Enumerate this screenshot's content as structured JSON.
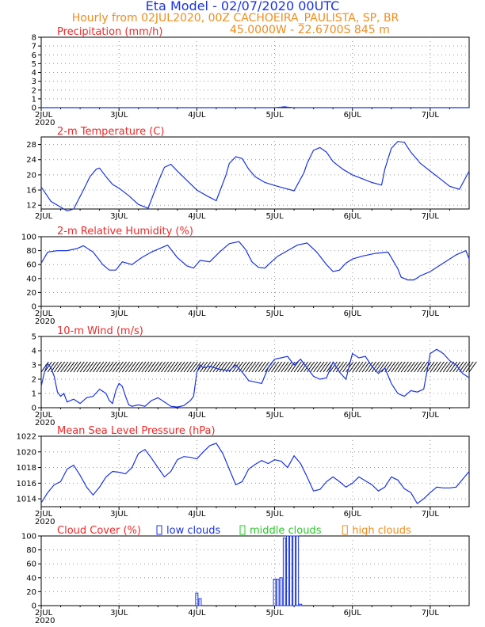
{
  "header": {
    "title": "Eta Model - 02/07/2020 00UTC",
    "line2": "Hourly from 02JUL2020, 00Z  CACHOEIRA_PAULISTA, SP, BR",
    "line3": "45.0000W - 22.6700S    845  m"
  },
  "colors": {
    "title": "#1a33e6",
    "subtitle": "#f08c1c",
    "panel_title": "#f02828",
    "series": "#1a33e6",
    "wind": "#000000",
    "low": "#1a33e6",
    "middle": "#28c828",
    "high": "#f08c1c"
  },
  "xaxis": {
    "range": [
      0,
      132
    ],
    "ticks": [
      {
        "label": "2JUL",
        "x": 0
      },
      {
        "label": "3JUL",
        "x": 24
      },
      {
        "label": "4JUL",
        "x": 48
      },
      {
        "label": "5JUL",
        "x": 72
      },
      {
        "label": "6JUL",
        "x": 96
      },
      {
        "label": "7JUL",
        "x": 120
      }
    ],
    "year_label": "2020"
  },
  "chart_data": [
    {
      "id": "precip",
      "type": "line",
      "title": "Precipitation (mm/h)",
      "ylim": [
        0,
        8
      ],
      "yticks": [
        0,
        1,
        2,
        3,
        4,
        5,
        6,
        7,
        8
      ],
      "show_year": true,
      "series": [
        {
          "name": "precipitation",
          "x": [
            0,
            72,
            74,
            75,
            76,
            78,
            132
          ],
          "y": [
            0,
            0,
            0.05,
            0.1,
            0.05,
            0,
            0
          ]
        }
      ]
    },
    {
      "id": "temp",
      "type": "line",
      "title": "2-m Temperature (C)",
      "ylim": [
        11,
        30
      ],
      "yticks": [
        12,
        16,
        20,
        24,
        28
      ],
      "show_year": false,
      "series": [
        {
          "name": "temperature",
          "x": [
            0,
            3,
            6,
            8,
            10,
            13,
            15,
            17,
            18,
            20,
            22,
            24,
            27,
            30,
            33,
            34,
            36,
            38,
            40,
            42,
            45,
            48,
            51,
            54,
            57,
            58,
            60,
            62,
            64,
            66,
            69,
            72,
            75,
            78,
            81,
            82,
            84,
            86,
            88,
            90,
            93,
            96,
            99,
            102,
            105,
            106,
            108,
            110,
            112,
            114,
            117,
            120,
            123,
            126,
            129,
            132
          ],
          "y": [
            16.8,
            13,
            11.5,
            10.5,
            11,
            16,
            19.5,
            21.5,
            21.8,
            19.5,
            17.5,
            16.5,
            14.5,
            12.2,
            11.2,
            13.5,
            18,
            22,
            22.8,
            21,
            18.5,
            16,
            14.5,
            13.2,
            20,
            23,
            24.8,
            24.3,
            21.5,
            19.5,
            18,
            17.2,
            16.5,
            15.8,
            20.5,
            23,
            26.5,
            27.2,
            26,
            23.5,
            21.5,
            20,
            19,
            18,
            17.3,
            21.5,
            27,
            28.8,
            28.6,
            26,
            23,
            21,
            19,
            17,
            16.2,
            21
          ]
        }
      ]
    },
    {
      "id": "rh",
      "type": "line",
      "title": "2-m Relative Humidity (%)",
      "ylim": [
        0,
        100
      ],
      "yticks": [
        0,
        20,
        40,
        60,
        80,
        100
      ],
      "show_year": true,
      "series": [
        {
          "name": "humidity",
          "x": [
            0,
            2,
            5,
            8,
            11,
            13,
            16,
            19,
            21,
            23,
            25,
            28,
            31,
            34,
            37,
            39,
            42,
            45,
            47,
            49,
            52,
            55,
            58,
            61,
            63,
            65,
            67,
            69,
            71,
            73,
            76,
            79,
            82,
            85,
            88,
            90,
            92,
            94,
            96,
            99,
            103,
            107,
            110,
            111,
            113,
            115,
            117,
            120,
            124,
            128,
            131,
            132
          ],
          "y": [
            62,
            78,
            80,
            80,
            83,
            87,
            78,
            60,
            52,
            52,
            64,
            60,
            70,
            78,
            84,
            88,
            70,
            58,
            55,
            66,
            64,
            78,
            90,
            93,
            82,
            64,
            56,
            55,
            64,
            72,
            80,
            88,
            91,
            78,
            60,
            50,
            52,
            62,
            68,
            72,
            76,
            78,
            54,
            42,
            38,
            38,
            44,
            50,
            62,
            74,
            80,
            68
          ]
        }
      ]
    },
    {
      "id": "wind",
      "type": "line",
      "title": "10-m Wind (m/s)",
      "ylim": [
        0,
        5
      ],
      "yticks": [
        0,
        1,
        2,
        3,
        4,
        5
      ],
      "show_year": true,
      "series": [
        {
          "name": "speed",
          "x": [
            0,
            1,
            2,
            3,
            4,
            5,
            6,
            7,
            8,
            10,
            12,
            14,
            16,
            18,
            20,
            21,
            22,
            23,
            24,
            25,
            26,
            27,
            28,
            30,
            32,
            34,
            36,
            38,
            40,
            42,
            44,
            46,
            47,
            48,
            49,
            50,
            52,
            55,
            58,
            60,
            62,
            64,
            66,
            68,
            70,
            72,
            74,
            76,
            78,
            80,
            82,
            84,
            86,
            88,
            90,
            92,
            94,
            96,
            98,
            100,
            102,
            104,
            106,
            108,
            110,
            112,
            114,
            116,
            118,
            120,
            122,
            124,
            126,
            128,
            130,
            132
          ],
          "y": [
            1.5,
            2.5,
            3.1,
            2.8,
            2.2,
            1.1,
            0.8,
            1.0,
            0.4,
            0.6,
            0.3,
            0.7,
            0.8,
            1.3,
            1.0,
            0.5,
            0.3,
            1.2,
            1.7,
            1.5,
            0.8,
            0.2,
            0.1,
            0.2,
            0.1,
            0.5,
            0.7,
            0.4,
            0.1,
            0.05,
            0.15,
            0.5,
            0.8,
            2.5,
            3.0,
            2.8,
            2.9,
            2.7,
            2.6,
            3.0,
            2.5,
            1.9,
            1.8,
            1.7,
            2.8,
            3.4,
            3.5,
            3.6,
            3.0,
            3.4,
            2.8,
            2.2,
            2.0,
            2.1,
            3.2,
            2.5,
            2.0,
            3.8,
            3.5,
            3.6,
            2.9,
            2.4,
            2.8,
            1.7,
            1.0,
            0.8,
            1.2,
            1.1,
            1.3,
            3.8,
            4.1,
            3.8,
            3.3,
            3.0,
            2.4,
            2.1
          ]
        }
      ],
      "barbs": {
        "baseline": 2.5,
        "direction_deg": 215,
        "start": 0,
        "end": 132,
        "step": 1
      }
    },
    {
      "id": "mslp",
      "type": "line",
      "title": "Mean Sea Level Pressure (hPa)",
      "ylim": [
        1013,
        1022
      ],
      "yticks": [
        1014,
        1016,
        1018,
        1020,
        1022
      ],
      "show_year": true,
      "series": [
        {
          "name": "pressure",
          "x": [
            0,
            2,
            4,
            6,
            8,
            10,
            12,
            14,
            16,
            18,
            20,
            22,
            24,
            26,
            28,
            30,
            32,
            34,
            36,
            38,
            40,
            42,
            44,
            46,
            48,
            50,
            52,
            54,
            56,
            58,
            60,
            62,
            64,
            66,
            68,
            70,
            72,
            74,
            76,
            78,
            80,
            82,
            84,
            86,
            88,
            90,
            92,
            94,
            96,
            98,
            100,
            102,
            104,
            106,
            108,
            110,
            112,
            114,
            116,
            118,
            120,
            122,
            124,
            126,
            128,
            130,
            132
          ],
          "y": [
            1013.5,
            1014.8,
            1015.8,
            1016.2,
            1017.8,
            1018.3,
            1017.0,
            1015.5,
            1014.5,
            1015.5,
            1016.8,
            1017.5,
            1017.4,
            1017.2,
            1018.0,
            1019.8,
            1020.3,
            1019.2,
            1018.0,
            1016.8,
            1017.5,
            1019.0,
            1019.4,
            1019.3,
            1019.1,
            1020.0,
            1020.8,
            1021.1,
            1019.8,
            1017.8,
            1015.8,
            1016.2,
            1017.8,
            1018.4,
            1018.9,
            1018.5,
            1019.0,
            1018.8,
            1018.0,
            1019.5,
            1018.5,
            1016.8,
            1015.0,
            1015.2,
            1016.2,
            1016.8,
            1016.2,
            1015.5,
            1016.0,
            1016.8,
            1016.3,
            1015.8,
            1015.0,
            1015.5,
            1016.8,
            1016.4,
            1015.3,
            1014.8,
            1013.4,
            1014.0,
            1014.8,
            1015.5,
            1015.4,
            1015.4,
            1015.5,
            1016.5,
            1017.5
          ]
        }
      ]
    },
    {
      "id": "cloud",
      "type": "bar",
      "title": "Cloud Cover (%)",
      "ylim": [
        0,
        100
      ],
      "yticks": [
        0,
        20,
        40,
        60,
        80,
        100
      ],
      "show_year": true,
      "legend": [
        {
          "label": "low clouds",
          "color": "#1a33e6"
        },
        {
          "label": "middle clouds",
          "color": "#28c828"
        },
        {
          "label": "high clouds",
          "color": "#f08c1c"
        }
      ],
      "series": [
        {
          "name": "low clouds",
          "x": [
            48,
            49,
            72,
            73,
            74,
            75,
            76,
            77,
            78,
            79,
            80
          ],
          "y": [
            18,
            10,
            38,
            38,
            40,
            97,
            100,
            100,
            100,
            100,
            2
          ]
        }
      ]
    }
  ]
}
